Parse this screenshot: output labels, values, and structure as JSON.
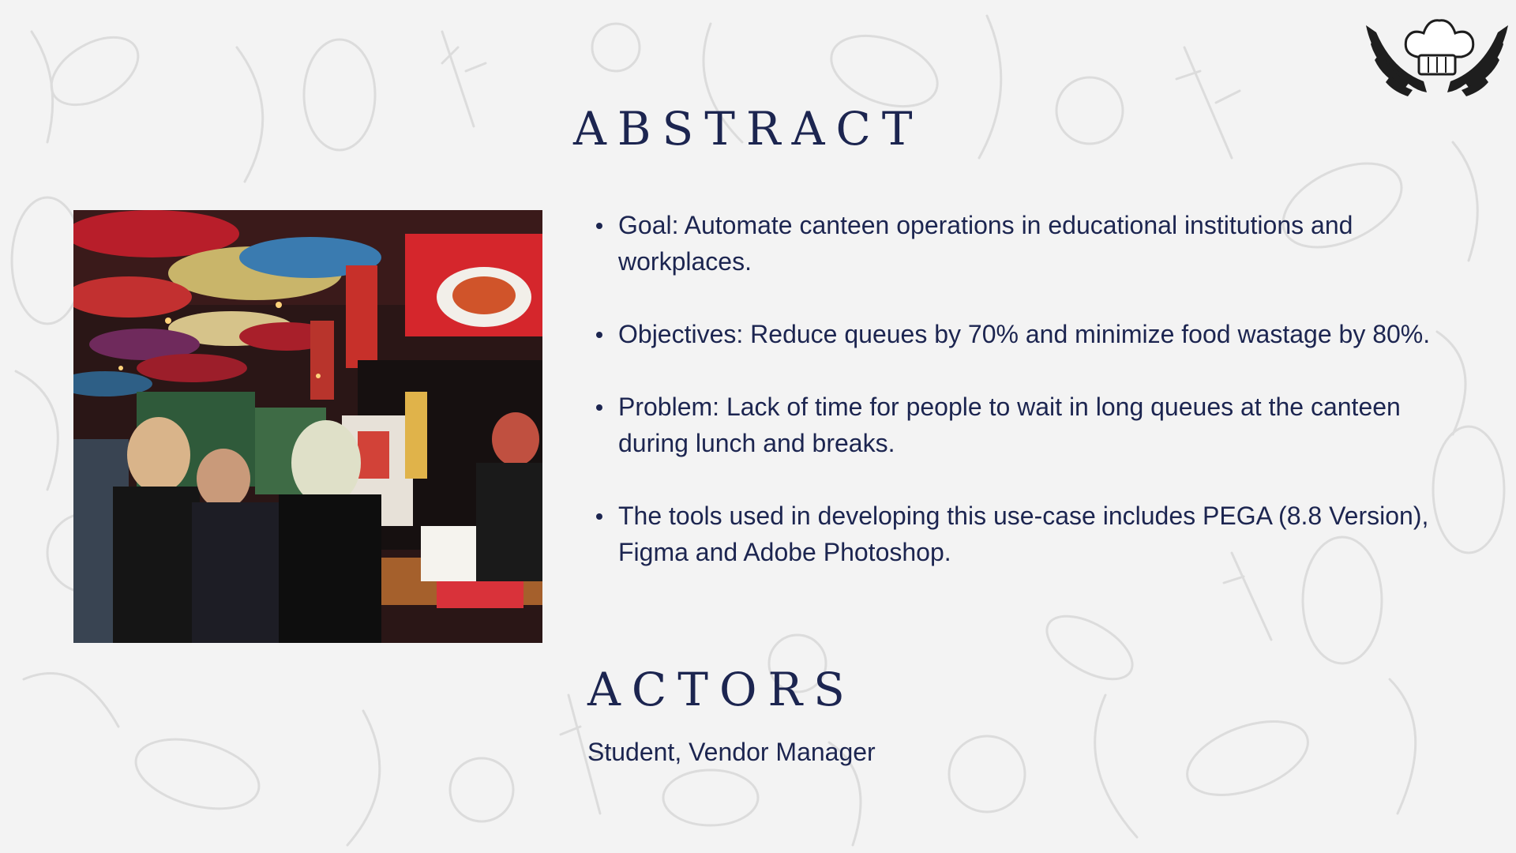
{
  "slide": {
    "logo_icon": "chef-hat-wings-icon",
    "photo_icon": "canteen-photo",
    "abstract": {
      "title": "ABSTRACT",
      "bullets": [
        "Goal: Automate canteen operations in educational institutions and workplaces.",
        "Objectives: Reduce queues by 70% and minimize food wastage by 80%.",
        "Problem: Lack of time for people to wait in long queues at the canteen during lunch and breaks.",
        "The tools used in developing this use-case includes PEGA (8.8 Version), Figma and Adobe Photoshop."
      ]
    },
    "actors": {
      "title": "ACTORS",
      "list": "Student, Vendor Manager"
    }
  },
  "colors": {
    "background": "#f3f3f3",
    "text": "#1c2550"
  }
}
